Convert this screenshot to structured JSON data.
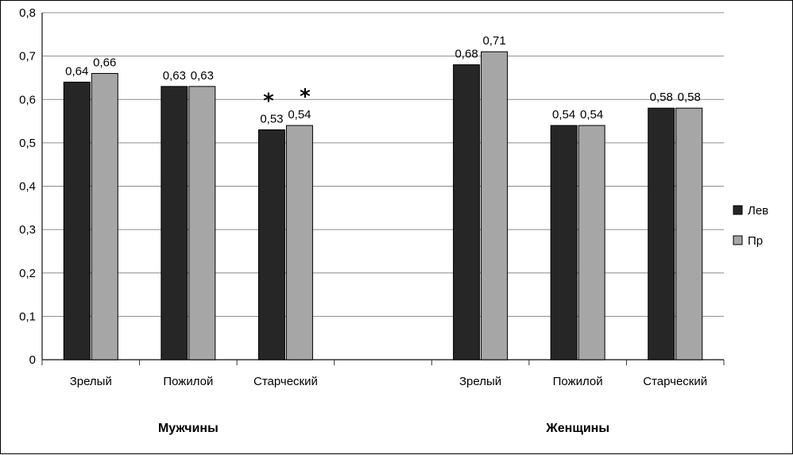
{
  "chart_data": {
    "type": "bar",
    "categories": [
      "Зрелый",
      "Пожилой",
      "Старческий",
      "",
      "Зрелый",
      "Пожилой",
      "Старческий"
    ],
    "groups": [
      {
        "label": "Мужчины",
        "categories": [
          0,
          1,
          2
        ]
      },
      {
        "label": "Женщины",
        "categories": [
          4,
          5,
          6
        ]
      }
    ],
    "series": [
      {
        "name": "Лев",
        "color": "#262626",
        "values": [
          0.64,
          0.63,
          0.53,
          null,
          0.68,
          0.54,
          0.58
        ],
        "labels": [
          "0,64",
          "0,63",
          "0,53",
          "",
          "0,68",
          "0,54",
          "0,58"
        ]
      },
      {
        "name": "Пр",
        "color": "#a6a6a6",
        "values": [
          0.66,
          0.63,
          0.54,
          null,
          0.71,
          0.54,
          0.58
        ],
        "labels": [
          "0,66",
          "0,63",
          "0,54",
          "",
          "0,71",
          "0,54",
          "0,58"
        ]
      }
    ],
    "annotations": [
      {
        "text": "*",
        "category": 2,
        "series": 0
      },
      {
        "text": "*",
        "category": 2,
        "series": 1
      }
    ],
    "ylim": [
      0,
      0.8
    ],
    "yticks": [
      0,
      0.1,
      0.2,
      0.3,
      0.4,
      0.5,
      0.6,
      0.7,
      0.8
    ],
    "ytick_labels": [
      "0",
      "0,1",
      "0,2",
      "0,3",
      "0,4",
      "0,5",
      "0,6",
      "0,7",
      "0,8"
    ],
    "grid": true,
    "legend_position": "right",
    "title": "",
    "xlabel": "",
    "ylabel": ""
  }
}
